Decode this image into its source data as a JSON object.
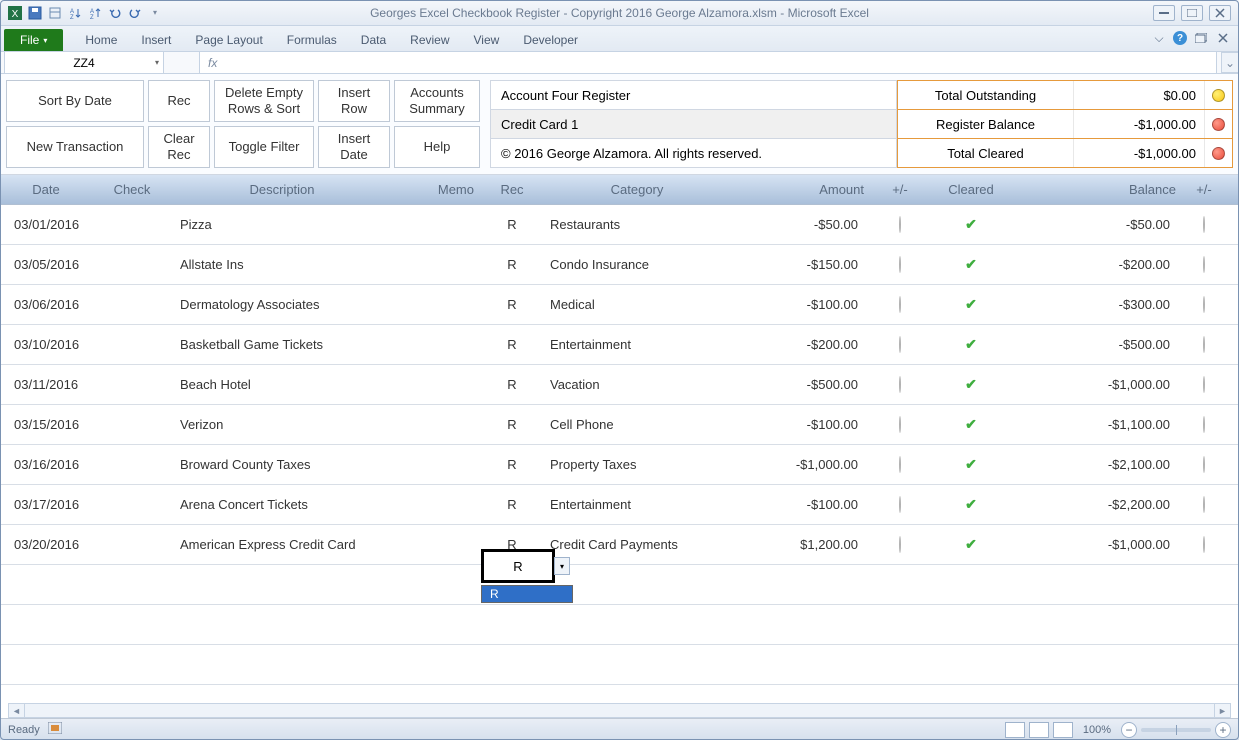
{
  "window": {
    "title": "Georges Excel Checkbook Register - Copyright 2016 George Alzamora.xlsm  -  Microsoft Excel"
  },
  "ribbon": {
    "file": "File",
    "tabs": [
      "Home",
      "Insert",
      "Page Layout",
      "Formulas",
      "Data",
      "Review",
      "View",
      "Developer"
    ]
  },
  "namebox": {
    "value": "ZZ4"
  },
  "formula_bar": {
    "fx_label": "fx"
  },
  "toolbar": {
    "sort_by_date": "Sort By Date",
    "rec": "Rec",
    "delete_empty": "Delete Empty Rows & Sort",
    "insert_row": "Insert Row",
    "accounts_summary": "Accounts Summary",
    "new_transaction": "New Transaction",
    "clear_rec": "Clear Rec",
    "toggle_filter": "Toggle Filter",
    "insert_date": "Insert Date",
    "help": "Help"
  },
  "register_info": {
    "title": "Account Four Register",
    "account": "Credit Card 1",
    "copyright": "© 2016 George Alzamora.  All rights reserved."
  },
  "totals": {
    "rows": [
      {
        "label": "Total Outstanding",
        "value": "$0.00",
        "dot": "yellow"
      },
      {
        "label": "Register Balance",
        "value": "-$1,000.00",
        "dot": "red"
      },
      {
        "label": "Total Cleared",
        "value": "-$1,000.00",
        "dot": "red"
      }
    ]
  },
  "columns": {
    "date": "Date",
    "check": "Check",
    "description": "Description",
    "memo": "Memo",
    "rec": "Rec",
    "category": "Category",
    "amount": "Amount",
    "pm": "+/-",
    "cleared": "Cleared",
    "balance": "Balance",
    "pm2": "+/-"
  },
  "rows": [
    {
      "date": "03/01/2016",
      "desc": "Pizza",
      "rec": "R",
      "cat": "Restaurants",
      "amt": "-$50.00",
      "dot": "red",
      "clr": true,
      "bal": "-$50.00",
      "dot2": "red"
    },
    {
      "date": "03/05/2016",
      "desc": "Allstate Ins",
      "rec": "R",
      "cat": "Condo Insurance",
      "amt": "-$150.00",
      "dot": "red",
      "clr": true,
      "bal": "-$200.00",
      "dot2": "red"
    },
    {
      "date": "03/06/2016",
      "desc": "Dermatology Associates",
      "rec": "R",
      "cat": "Medical",
      "amt": "-$100.00",
      "dot": "red",
      "clr": true,
      "bal": "-$300.00",
      "dot2": "red"
    },
    {
      "date": "03/10/2016",
      "desc": "Basketball Game Tickets",
      "rec": "R",
      "cat": "Entertainment",
      "amt": "-$200.00",
      "dot": "red",
      "clr": true,
      "bal": "-$500.00",
      "dot2": "red"
    },
    {
      "date": "03/11/2016",
      "desc": "Beach Hotel",
      "rec": "R",
      "cat": "Vacation",
      "amt": "-$500.00",
      "dot": "red",
      "clr": true,
      "bal": "-$1,000.00",
      "dot2": "red"
    },
    {
      "date": "03/15/2016",
      "desc": "Verizon",
      "rec": "R",
      "cat": "Cell Phone",
      "amt": "-$100.00",
      "dot": "red",
      "clr": true,
      "bal": "-$1,100.00",
      "dot2": "red"
    },
    {
      "date": "03/16/2016",
      "desc": "Broward County Taxes",
      "rec": "R",
      "cat": "Property Taxes",
      "amt": "-$1,000.00",
      "dot": "red",
      "clr": true,
      "bal": "-$2,100.00",
      "dot2": "red"
    },
    {
      "date": "03/17/2016",
      "desc": "Arena Concert Tickets",
      "rec": "R",
      "cat": "Entertainment",
      "amt": "-$100.00",
      "dot": "red",
      "clr": true,
      "bal": "-$2,200.00",
      "dot2": "red"
    },
    {
      "date": "03/20/2016",
      "desc": "American Express Credit Card",
      "rec": "R",
      "cat": "Credit Card Payments",
      "amt": "$1,200.00",
      "dot": "green",
      "clr": true,
      "bal": "-$1,000.00",
      "dot2": "red"
    }
  ],
  "active_cell": {
    "value": "R",
    "dropdown_option": "R"
  },
  "statusbar": {
    "ready": "Ready",
    "zoom": "100%"
  },
  "colors": {
    "header_grad_top": "#d6e3f3",
    "header_grad_bot": "#a9bfda",
    "orange_border": "#e69a3c",
    "file_tab": "#1f7a1b"
  }
}
